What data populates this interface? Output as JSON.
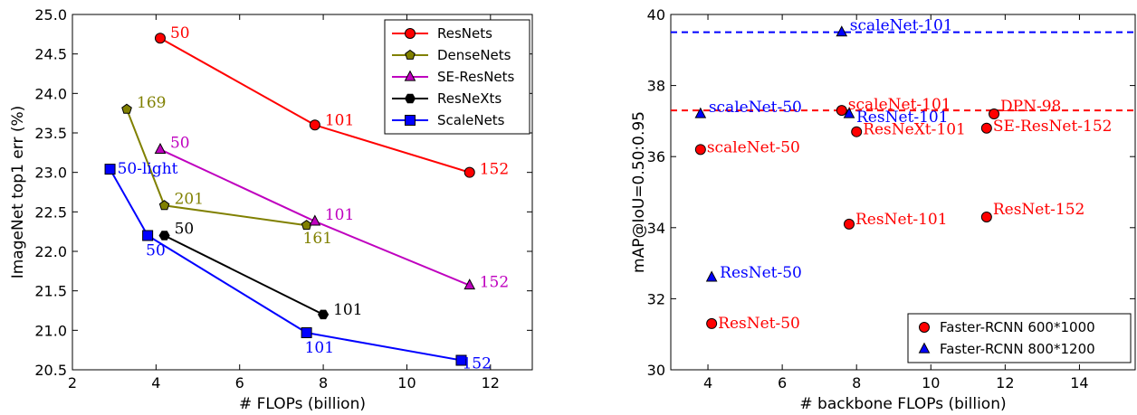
{
  "chart_data": [
    {
      "type": "line",
      "xlabel": "# FLOPs (billion)",
      "ylabel": "ImageNet top1 err (%)",
      "xlim": [
        2,
        13
      ],
      "ylim": [
        20.5,
        25.0
      ],
      "xticks": [
        "2",
        "4",
        "6",
        "8",
        "10",
        "12"
      ],
      "yticks": [
        "20.5",
        "21.0",
        "21.5",
        "22.0",
        "22.5",
        "23.0",
        "23.5",
        "24.0",
        "24.5",
        "25.0"
      ],
      "legend_position": "top-right",
      "series": [
        {
          "name": "ResNets",
          "color": "#ff0000",
          "marker": "circle",
          "points": [
            {
              "x": 4.1,
              "y": 24.7,
              "label": "50"
            },
            {
              "x": 7.8,
              "y": 23.6,
              "label": "101"
            },
            {
              "x": 11.5,
              "y": 23.0,
              "label": "152"
            }
          ]
        },
        {
          "name": "DenseNets",
          "color": "#808000",
          "marker": "pentagon",
          "points": [
            {
              "x": 3.3,
              "y": 23.8,
              "label": "169"
            },
            {
              "x": 4.2,
              "y": 22.58,
              "label": "201"
            },
            {
              "x": 7.6,
              "y": 22.33,
              "label": "161"
            }
          ]
        },
        {
          "name": "SE-ResNets",
          "color": "#bf00bf",
          "marker": "triangle",
          "points": [
            {
              "x": 4.1,
              "y": 23.29,
              "label": "50"
            },
            {
              "x": 7.8,
              "y": 22.38,
              "label": "101"
            },
            {
              "x": 11.5,
              "y": 21.57,
              "label": "152"
            }
          ]
        },
        {
          "name": "ResNeXts",
          "color": "#000000",
          "marker": "hexagon",
          "points": [
            {
              "x": 4.2,
              "y": 22.2,
              "label": "50"
            },
            {
              "x": 8.0,
              "y": 21.2,
              "label": "101"
            }
          ]
        },
        {
          "name": "ScaleNets",
          "color": "#0000ff",
          "marker": "square",
          "points": [
            {
              "x": 2.9,
              "y": 23.04,
              "label": "50-light"
            },
            {
              "x": 3.8,
              "y": 22.2,
              "label": "50"
            },
            {
              "x": 7.6,
              "y": 20.97,
              "label": "101"
            },
            {
              "x": 11.3,
              "y": 20.62,
              "label": "152"
            }
          ]
        }
      ]
    },
    {
      "type": "scatter",
      "xlabel": "# backbone FLOPs (billion)",
      "ylabel": "mAP@IoU=0.50:0.95",
      "xlim": [
        3,
        15.5
      ],
      "ylim": [
        30,
        40
      ],
      "xticks": [
        "4",
        "6",
        "8",
        "10",
        "12",
        "14"
      ],
      "yticks": [
        "30",
        "32",
        "34",
        "36",
        "38",
        "40"
      ],
      "legend_position": "lower-right",
      "hlines": [
        {
          "y": 39.5,
          "color": "#0000ff",
          "style": "dashed"
        },
        {
          "y": 37.3,
          "color": "#ff0000",
          "style": "dashed"
        }
      ],
      "series": [
        {
          "name": "Faster-RCNN 600*1000",
          "color": "#ff0000",
          "marker": "circle",
          "points": [
            {
              "x": 4.1,
              "y": 31.3,
              "label": "ResNet-50"
            },
            {
              "x": 7.8,
              "y": 34.1,
              "label": "ResNet-101"
            },
            {
              "x": 11.5,
              "y": 34.3,
              "label": "ResNet-152"
            },
            {
              "x": 3.8,
              "y": 36.2,
              "label": "scaleNet-50"
            },
            {
              "x": 7.6,
              "y": 37.3,
              "label": "scaleNet-101"
            },
            {
              "x": 8.0,
              "y": 36.7,
              "label": "ResNeXt-101"
            },
            {
              "x": 11.5,
              "y": 36.8,
              "label": "SE-ResNet-152"
            },
            {
              "x": 11.7,
              "y": 37.2,
              "label": "DPN-98"
            }
          ]
        },
        {
          "name": "Faster-RCNN 800*1200",
          "color": "#0000ff",
          "marker": "triangle",
          "points": [
            {
              "x": 4.1,
              "y": 32.6,
              "label": "ResNet-50"
            },
            {
              "x": 3.8,
              "y": 37.2,
              "label": "scaleNet-50"
            },
            {
              "x": 7.6,
              "y": 39.5,
              "label": "scaleNet-101"
            },
            {
              "x": 7.8,
              "y": 37.2,
              "label": "ResNet-101"
            }
          ]
        }
      ]
    }
  ]
}
